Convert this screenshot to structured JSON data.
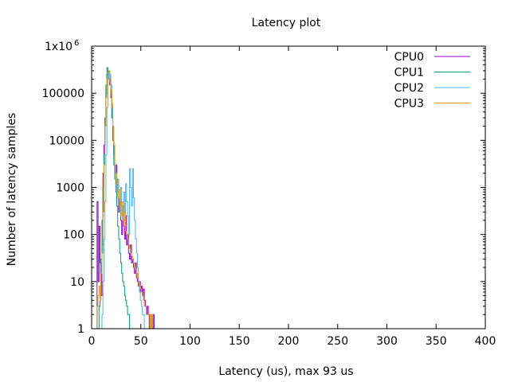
{
  "chart_data": {
    "type": "line",
    "title": "Latency plot",
    "xlabel": "Latency (us), max 93 us",
    "ylabel": "Number of latency samples",
    "xlim": [
      0,
      400
    ],
    "ylim": [
      1,
      1000000
    ],
    "yscale": "log",
    "grid": false,
    "legend_position": "top-right",
    "x_ticks": [
      "0",
      "50",
      "100",
      "150",
      "200",
      "250",
      "300",
      "350",
      "400"
    ],
    "y_ticks": [
      "1",
      "10",
      "100",
      "1000",
      "10000",
      "100000",
      "1x10"
    ],
    "y_top_exponent": "6",
    "series": [
      {
        "name": "CPU0",
        "color": "#9400d3",
        "x": [
          6,
          7,
          8,
          9,
          10,
          11,
          12,
          13,
          14,
          15,
          16,
          17,
          18,
          19,
          20,
          21,
          22,
          23,
          24,
          25,
          26,
          27,
          28,
          29,
          30,
          31,
          32,
          33,
          34,
          35,
          36,
          37,
          38,
          39,
          40,
          41,
          42,
          43,
          44,
          45,
          46,
          47,
          48,
          49,
          50,
          51,
          52,
          53,
          54,
          55,
          56,
          57,
          58,
          59,
          60,
          61,
          62,
          63,
          64,
          65,
          66,
          67,
          68,
          69,
          70,
          71,
          72,
          73,
          74,
          75,
          76,
          77,
          78,
          79,
          80
        ],
        "values": [
          500,
          10,
          150,
          25,
          5,
          60,
          2000,
          8000,
          30000,
          100000,
          250000,
          300000,
          200000,
          150000,
          80000,
          30000,
          10000,
          5000,
          2000,
          3000,
          1500,
          800,
          300,
          500,
          200,
          100,
          400,
          150,
          80,
          250,
          60,
          100,
          40,
          30,
          60,
          25,
          30,
          20,
          15,
          25,
          12,
          10,
          8,
          10,
          6,
          8,
          5,
          7,
          4,
          3,
          2,
          3,
          2,
          1,
          2,
          1,
          1,
          2,
          1,
          1,
          1,
          1,
          1,
          1,
          1,
          1,
          1,
          1,
          1,
          1,
          1,
          1,
          1,
          1,
          1
        ]
      },
      {
        "name": "CPU1",
        "color": "#009e73",
        "x": [
          6,
          7,
          8,
          9,
          10,
          11,
          12,
          13,
          14,
          15,
          16,
          17,
          18,
          19,
          20,
          21,
          22,
          23,
          24,
          25,
          26,
          27,
          28,
          29,
          30,
          31,
          32,
          33,
          34,
          35,
          36,
          37,
          38,
          39,
          40,
          41,
          42,
          43,
          44,
          45
        ],
        "values": [
          1,
          1,
          3,
          8,
          30,
          200,
          1000,
          5000,
          30000,
          150000,
          350000,
          300000,
          250000,
          200000,
          100000,
          30000,
          10000,
          3000,
          1500,
          800,
          400,
          150,
          80,
          40,
          25,
          15,
          10,
          8,
          5,
          4,
          3,
          2,
          2,
          1,
          1,
          1,
          1,
          1,
          1,
          1
        ]
      },
      {
        "name": "CPU2",
        "color": "#56b4e9",
        "x": [
          10,
          11,
          12,
          13,
          14,
          15,
          16,
          17,
          18,
          19,
          20,
          21,
          22,
          23,
          24,
          25,
          26,
          27,
          28,
          29,
          30,
          31,
          32,
          33,
          34,
          35,
          36,
          37,
          38,
          39,
          40,
          41,
          42,
          43,
          44,
          45,
          46,
          47,
          48,
          49,
          50,
          51,
          52,
          53,
          54,
          55,
          56,
          57,
          58,
          59,
          60,
          61,
          62,
          63,
          64,
          65
        ],
        "values": [
          1,
          2,
          10,
          80,
          500,
          5000,
          50000,
          200000,
          300000,
          250000,
          150000,
          60000,
          20000,
          8000,
          3000,
          1500,
          800,
          1500,
          600,
          300,
          1000,
          400,
          200,
          800,
          300,
          1200,
          500,
          250,
          100,
          2500,
          1000,
          400,
          2500,
          600,
          200,
          80,
          40,
          20,
          10,
          6,
          4,
          3,
          2,
          2,
          1,
          1,
          1,
          1,
          1,
          1,
          1,
          1,
          1,
          1,
          1,
          1
        ]
      },
      {
        "name": "CPU3",
        "color": "#e69f00",
        "x": [
          6,
          7,
          8,
          9,
          10,
          11,
          12,
          13,
          14,
          15,
          16,
          17,
          18,
          19,
          20,
          21,
          22,
          23,
          24,
          25,
          26,
          27,
          28,
          29,
          30,
          31,
          32,
          33,
          34,
          35,
          36,
          37,
          38,
          39,
          40,
          41,
          42,
          43,
          44,
          45,
          46,
          47,
          48,
          49,
          50,
          51,
          52,
          53,
          54,
          55,
          56,
          57,
          58,
          59,
          60,
          61,
          62,
          63,
          64,
          65,
          66,
          67,
          68,
          69,
          70,
          71,
          72,
          73,
          74,
          75,
          76,
          77,
          78,
          79,
          80,
          81,
          82,
          83,
          84,
          85,
          86,
          87,
          88,
          89,
          90,
          91,
          92,
          93
        ],
        "values": [
          3,
          5,
          8,
          4,
          15,
          40,
          300,
          3000,
          20000,
          80000,
          200000,
          280000,
          300000,
          200000,
          120000,
          50000,
          20000,
          8000,
          3000,
          2000,
          1200,
          600,
          900,
          400,
          250,
          500,
          200,
          150,
          300,
          120,
          100,
          80,
          60,
          50,
          40,
          35,
          30,
          25,
          20,
          18,
          15,
          12,
          10,
          8,
          7,
          6,
          5,
          4,
          3,
          3,
          2,
          2,
          2,
          2,
          1,
          2,
          1,
          1,
          1,
          1,
          1,
          1,
          1,
          1,
          1,
          1,
          1,
          1,
          1,
          1,
          1,
          1,
          1,
          1,
          1,
          1,
          1,
          1,
          1,
          1,
          1,
          1,
          1,
          1,
          1,
          1,
          1,
          1
        ]
      }
    ]
  }
}
